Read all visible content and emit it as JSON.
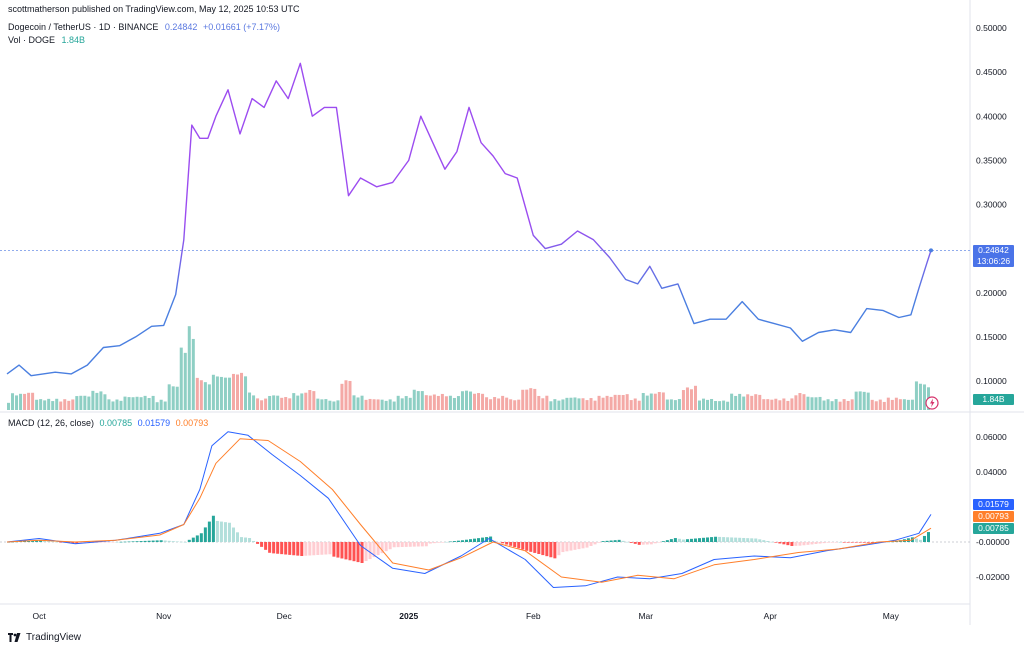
{
  "header": {
    "published": "scottmatherson published on TradingView.com, May 12, 2025 10:53 UTC",
    "symbol_title": "Dogecoin / TetherUS · 1D · BINANCE",
    "last_price": "0.24842",
    "change": "+0.01661 (+7.17%)",
    "vol_label": "Vol · DOGE",
    "vol_value": "1.84B"
  },
  "price_tag": {
    "price": "0.24842",
    "countdown": "13:06:26"
  },
  "vol_tag": "1.84B",
  "macd_header": {
    "label": "MACD (12, 26, close)",
    "hist": "0.00785",
    "macd": "0.01579",
    "signal": "0.00793"
  },
  "macd_tags": {
    "macd": "0.01579",
    "signal": "0.00793",
    "hist": "0.00785"
  },
  "footer": {
    "brand": "TradingView"
  },
  "colors": {
    "price_line_top": "#9c4cf0",
    "price_line_bottom": "#4a7fe0",
    "vol_up": "#8ecfc4",
    "vol_down": "#f4a9a6",
    "macd_line": "#2962ff",
    "signal_line": "#ff7f2a",
    "hist_pos_strong": "#26a69a",
    "hist_pos_weak": "#b2dfdb",
    "hist_neg_strong": "#ff5252",
    "hist_neg_weak": "#ffcdd2"
  },
  "chart_data": [
    {
      "type": "line",
      "title": "Dogecoin / TetherUS · 1D · BINANCE",
      "y_ticks": [
        "0.50000",
        "0.45000",
        "0.40000",
        "0.35000",
        "0.30000",
        "0.25000",
        "0.20000",
        "0.15000",
        "0.10000"
      ],
      "ylim": [
        0.08,
        0.5
      ],
      "x_labels": [
        "Oct",
        "Nov",
        "Dec",
        "2025",
        "Feb",
        "Mar",
        "Apr",
        "May"
      ],
      "x_label_dates": [
        "2024-10-01",
        "2024-11-01",
        "2024-12-01",
        "2025-01-01",
        "2025-02-01",
        "2025-03-01",
        "2025-04-01",
        "2025-05-01"
      ],
      "series": [
        {
          "date": [
            "2024-09-23",
            "2024-09-26",
            "2024-09-29",
            "2024-10-02",
            "2024-10-05",
            "2024-10-09",
            "2024-10-13",
            "2024-10-17",
            "2024-10-21",
            "2024-10-25",
            "2024-10-29",
            "2024-11-01",
            "2024-11-04",
            "2024-11-06",
            "2024-11-08",
            "2024-11-10",
            "2024-11-12",
            "2024-11-14",
            "2024-11-17",
            "2024-11-20",
            "2024-11-23",
            "2024-11-26",
            "2024-11-29",
            "2024-12-02",
            "2024-12-05",
            "2024-12-08",
            "2024-12-11",
            "2024-12-14",
            "2024-12-17",
            "2024-12-20",
            "2024-12-24",
            "2024-12-28",
            "2025-01-01",
            "2025-01-04",
            "2025-01-07",
            "2025-01-10",
            "2025-01-13",
            "2025-01-16",
            "2025-01-19",
            "2025-01-22",
            "2025-01-25",
            "2025-01-28",
            "2025-02-01",
            "2025-02-04",
            "2025-02-08",
            "2025-02-12",
            "2025-02-16",
            "2025-02-20",
            "2025-02-24",
            "2025-02-27",
            "2025-03-02",
            "2025-03-05",
            "2025-03-09",
            "2025-03-13",
            "2025-03-17",
            "2025-03-21",
            "2025-03-25",
            "2025-03-29",
            "2025-04-02",
            "2025-04-06",
            "2025-04-09",
            "2025-04-13",
            "2025-04-17",
            "2025-04-21",
            "2025-04-25",
            "2025-04-29",
            "2025-05-03",
            "2025-05-06",
            "2025-05-08",
            "2025-05-10",
            "2025-05-11"
          ],
          "value": [
            0.108,
            0.118,
            0.106,
            0.108,
            0.11,
            0.108,
            0.118,
            0.138,
            0.14,
            0.15,
            0.162,
            0.163,
            0.198,
            0.26,
            0.39,
            0.375,
            0.375,
            0.4,
            0.43,
            0.38,
            0.42,
            0.41,
            0.44,
            0.42,
            0.46,
            0.4,
            0.41,
            0.41,
            0.31,
            0.33,
            0.32,
            0.325,
            0.35,
            0.4,
            0.37,
            0.34,
            0.36,
            0.41,
            0.37,
            0.355,
            0.335,
            0.33,
            0.265,
            0.25,
            0.255,
            0.27,
            0.26,
            0.24,
            0.215,
            0.21,
            0.23,
            0.205,
            0.21,
            0.165,
            0.17,
            0.17,
            0.19,
            0.17,
            0.165,
            0.16,
            0.145,
            0.155,
            0.158,
            0.155,
            0.182,
            0.18,
            0.172,
            0.175,
            0.205,
            0.234,
            0.248
          ]
        },
        {
          "name": "Vol · DOGE",
          "last": "1.84B"
        }
      ]
    },
    {
      "type": "bar",
      "title": "MACD (12, 26, close)",
      "y_ticks": [
        "0.06000",
        "0.04000",
        "0.02000",
        "-0.00000",
        "-0.02000"
      ],
      "ylim": [
        -0.03,
        0.065
      ],
      "series": [
        {
          "name": "MACD",
          "last": 0.01579,
          "date": [
            "2024-09-23",
            "2024-10-01",
            "2024-10-10",
            "2024-10-20",
            "2024-10-31",
            "2024-11-06",
            "2024-11-10",
            "2024-11-13",
            "2024-11-17",
            "2024-11-22",
            "2024-11-28",
            "2024-12-05",
            "2024-12-12",
            "2024-12-20",
            "2024-12-28",
            "2025-01-05",
            "2025-01-14",
            "2025-01-21",
            "2025-01-30",
            "2025-02-06",
            "2025-02-14",
            "2025-02-22",
            "2025-03-02",
            "2025-03-10",
            "2025-03-18",
            "2025-03-28",
            "2025-04-06",
            "2025-04-15",
            "2025-04-24",
            "2025-05-02",
            "2025-05-08",
            "2025-05-11"
          ],
          "value": [
            0.0,
            0.002,
            -0.001,
            0.001,
            0.005,
            0.01,
            0.03,
            0.055,
            0.063,
            0.061,
            0.05,
            0.038,
            0.025,
            -0.002,
            -0.015,
            -0.018,
            -0.008,
            0.002,
            -0.01,
            -0.026,
            -0.025,
            -0.02,
            -0.021,
            -0.018,
            -0.01,
            -0.008,
            -0.009,
            -0.005,
            -0.002,
            0.001,
            0.005,
            0.0158
          ]
        },
        {
          "name": "Signal",
          "last": 0.00793,
          "date": [
            "2024-09-23",
            "2024-10-01",
            "2024-10-10",
            "2024-10-20",
            "2024-10-31",
            "2024-11-06",
            "2024-11-10",
            "2024-11-14",
            "2024-11-20",
            "2024-11-27",
            "2024-12-05",
            "2024-12-13",
            "2024-12-20",
            "2024-12-28",
            "2025-01-06",
            "2025-01-14",
            "2025-01-22",
            "2025-01-30",
            "2025-02-08",
            "2025-02-18",
            "2025-02-27",
            "2025-03-08",
            "2025-03-18",
            "2025-03-28",
            "2025-04-08",
            "2025-04-18",
            "2025-04-28",
            "2025-05-06",
            "2025-05-11"
          ],
          "value": [
            0.0,
            0.001,
            0.0,
            0.001,
            0.004,
            0.01,
            0.025,
            0.045,
            0.059,
            0.058,
            0.046,
            0.03,
            0.01,
            -0.012,
            -0.016,
            -0.009,
            0.0,
            -0.005,
            -0.02,
            -0.023,
            -0.019,
            -0.021,
            -0.013,
            -0.01,
            -0.006,
            -0.004,
            0.0,
            0.001,
            0.0079
          ]
        }
      ],
      "histogram": {
        "name": "Histogram",
        "last": 0.00785
      }
    }
  ]
}
